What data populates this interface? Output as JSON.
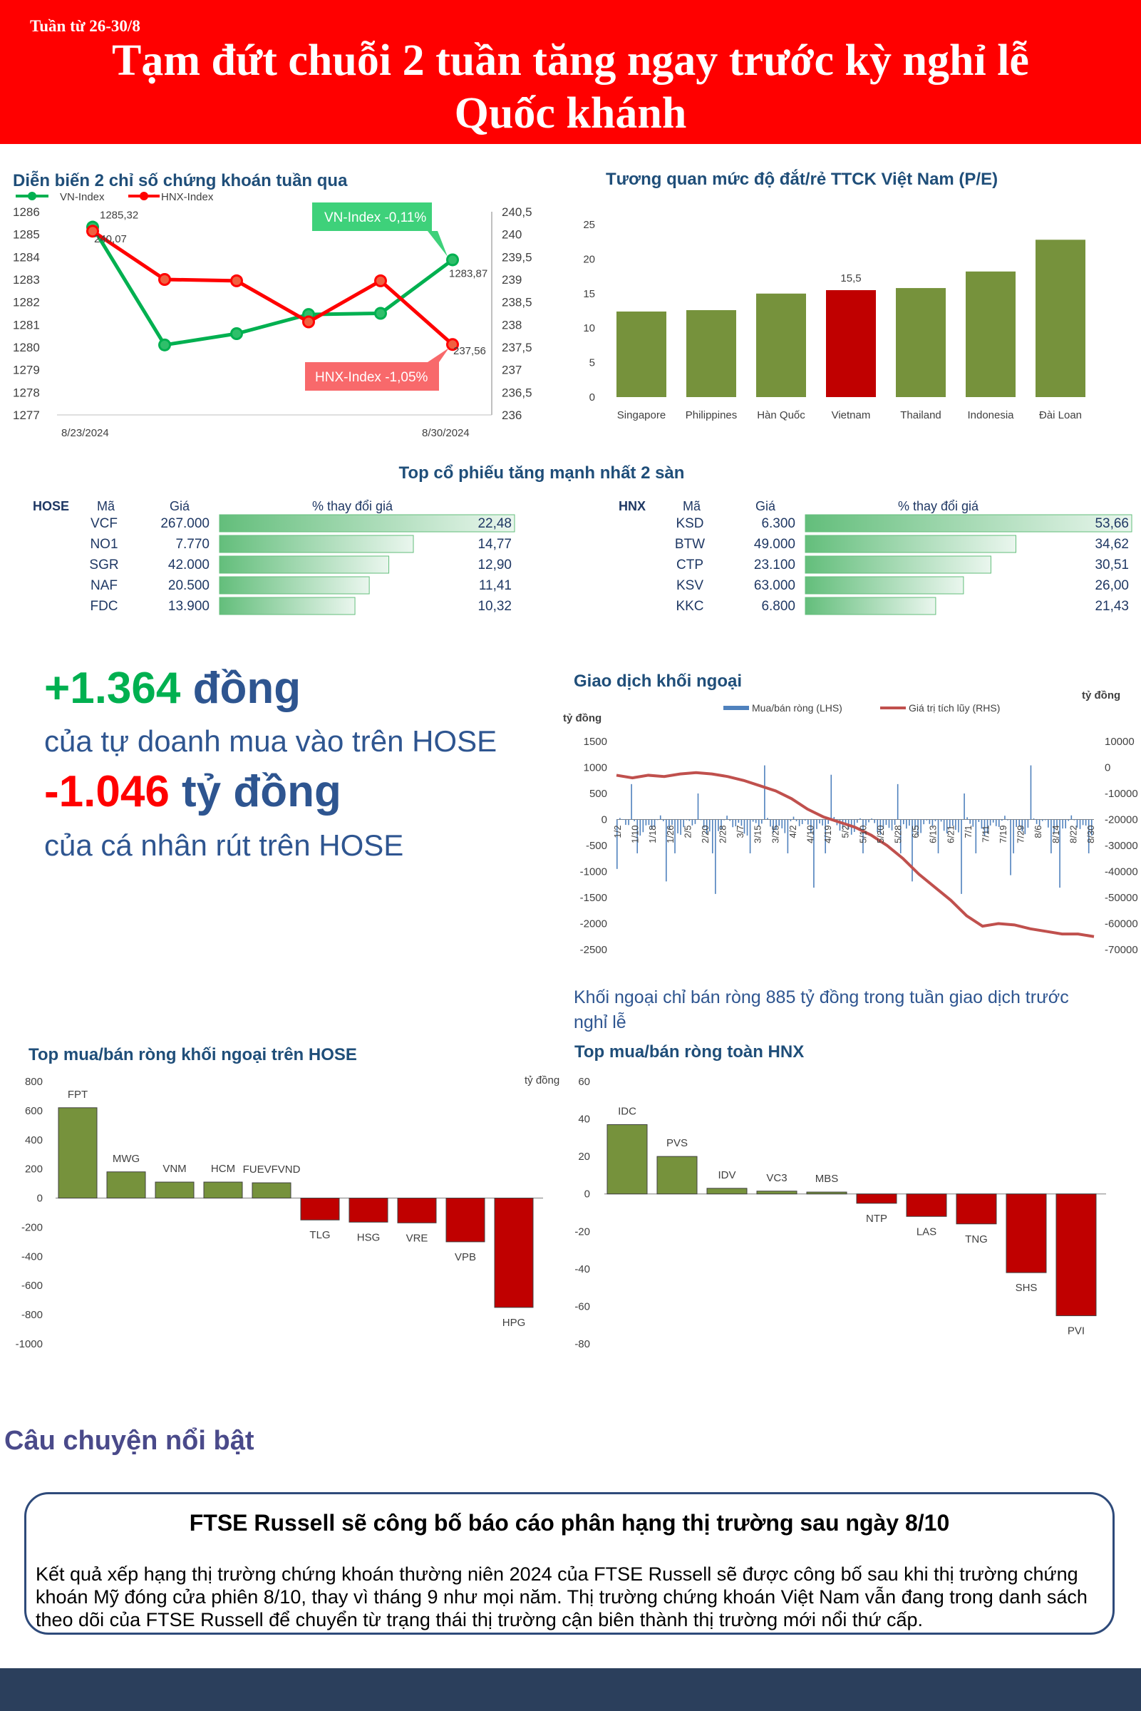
{
  "header": {
    "week": "Tuần từ 26-30/8",
    "title_line1": "Tạm đứt chuỗi 2 tuần tăng ngay trước kỳ nghỉ lễ",
    "title_line2": "Quốc khánh"
  },
  "colors": {
    "red": "#ff0000",
    "green": "#00b050",
    "olive": "#76923c",
    "darkred": "#c00000",
    "blue": "#4f81bd",
    "navy": "#1f3864"
  },
  "chart_data": [
    {
      "type": "line",
      "title": "Diễn biến 2 chỉ số chứng khoán tuần qua",
      "x": [
        "8/23/2024",
        "8/26/2024",
        "8/27/2024",
        "8/28/2024",
        "8/29/2024",
        "8/30/2024"
      ],
      "x_tick_labels": [
        "8/23/2024",
        "8/30/2024"
      ],
      "series": [
        {
          "name": "VN-Index",
          "axis": "left",
          "values": [
            1285.32,
            1280.1,
            1280.6,
            1281.45,
            1281.5,
            1283.87
          ]
        },
        {
          "name": "HNX-Index",
          "axis": "right",
          "values": [
            240.07,
            239.0,
            238.97,
            238.06,
            238.97,
            237.56
          ]
        }
      ],
      "point_labels": {
        "vn_first": "1285,32",
        "vn_last": "1283,87",
        "hnx_first": "240,07",
        "hnx_last": "237,56"
      },
      "left_axis_ticks": [
        "1286",
        "1285",
        "1284",
        "1283",
        "1282",
        "1281",
        "1280",
        "1279",
        "1278",
        "1277"
      ],
      "right_axis_ticks": [
        "240,5",
        "240",
        "239,5",
        "239",
        "238,5",
        "238",
        "237,5",
        "237",
        "236,5",
        "236"
      ],
      "ylim_left": [
        1277,
        1286
      ],
      "ylim_right": [
        236,
        240.5
      ],
      "callouts": {
        "vn": "VN-Index -0,11%",
        "hnx": "HNX-Index -1,05%"
      },
      "legend": "top-left"
    },
    {
      "type": "bar",
      "title": "Tương quan mức độ đắt/rẻ TTCK Việt Nam (P/E)",
      "categories": [
        "Singapore",
        "Philippines",
        "Hàn Quốc",
        "Vietnam",
        "Thailand",
        "Indonesia",
        "Đài Loan"
      ],
      "values": [
        12.4,
        12.6,
        15.0,
        15.5,
        15.8,
        18.2,
        22.8
      ],
      "highlight": "Vietnam",
      "highlight_label": "15,5",
      "y_ticks": [
        "25",
        "20",
        "15",
        "10",
        "5",
        "0"
      ],
      "ylim": [
        0,
        25
      ]
    },
    {
      "type": "table",
      "title": "Top cổ phiếu tăng mạnh nhất 2 sàn",
      "hose": {
        "exchange": "HOSE",
        "col_code": "Mã",
        "col_price": "Giá",
        "col_change": "% thay đổi giá",
        "rows": [
          {
            "code": "VCF",
            "price": "267.000",
            "change_label": "22,48",
            "change": 22.48
          },
          {
            "code": "NO1",
            "price": "7.770",
            "change_label": "14,77",
            "change": 14.77
          },
          {
            "code": "SGR",
            "price": "42.000",
            "change_label": "12,90",
            "change": 12.9
          },
          {
            "code": "NAF",
            "price": "20.500",
            "change_label": "11,41",
            "change": 11.41
          },
          {
            "code": "FDC",
            "price": "13.900",
            "change_label": "10,32",
            "change": 10.32
          }
        ]
      },
      "hnx": {
        "exchange": "HNX",
        "col_code": "Mã",
        "col_price": "Giá",
        "col_change": "% thay đổi giá",
        "rows": [
          {
            "code": "KSD",
            "price": "6.300",
            "change_label": "53,66",
            "change": 53.66
          },
          {
            "code": "BTW",
            "price": "49.000",
            "change_label": "34,62",
            "change": 34.62
          },
          {
            "code": "CTP",
            "price": "23.100",
            "change_label": "30,51",
            "change": 30.51
          },
          {
            "code": "KSV",
            "price": "63.000",
            "change_label": "26,00",
            "change": 26.0
          },
          {
            "code": "KKC",
            "price": "6.800",
            "change_label": "21,43",
            "change": 21.43
          }
        ]
      }
    },
    {
      "type": "bar",
      "title": "Giao dịch khối ngoại",
      "unit_left": "tỷ đồng",
      "unit_right": "tỷ đồng",
      "series": [
        {
          "name": "Mua/bán ròng (LHS)",
          "type": "bar",
          "axis": "left"
        },
        {
          "name": "Giá trị tích lũy (RHS)",
          "type": "line",
          "axis": "right",
          "values": [
            -3000,
            -4000,
            -3000,
            -3500,
            -2500,
            -2000,
            -2500,
            -3500,
            -5000,
            -7000,
            -9000,
            -12000,
            -16000,
            -19000,
            -21000,
            -23000,
            -26000,
            -30000,
            -35000,
            -41000,
            -46000,
            -51000,
            -57000,
            -61000,
            -60000,
            -60500,
            -62000,
            -63000,
            -64000,
            -64000,
            -65000
          ]
        }
      ],
      "x_tick_labels": [
        "1/2",
        "1/10",
        "1/18",
        "1/26",
        "2/5",
        "2/20",
        "2/28",
        "3/7",
        "3/15",
        "3/25",
        "4/2",
        "4/10",
        "4/19",
        "5/2",
        "5/10",
        "5/20",
        "5/28",
        "6/5",
        "6/13",
        "6/21",
        "7/1",
        "7/11",
        "7/19",
        "7/29",
        "8/6",
        "8/14",
        "8/22",
        "8/30"
      ],
      "left_ticks": [
        "1500",
        "1000",
        "500",
        "0",
        "-500",
        "-1000",
        "-1500",
        "-2000",
        "-2500"
      ],
      "right_ticks": [
        "10000",
        "0",
        "-10000",
        "-20000",
        "-30000",
        "-40000",
        "-50000",
        "-60000",
        "-70000"
      ],
      "ylim_left": [
        -2500,
        1500
      ],
      "ylim_right": [
        -70000,
        10000
      ],
      "note": "Khối ngoại chỉ bán ròng 885 tỷ đồng trong tuần giao dịch trước nghỉ lễ"
    },
    {
      "type": "bar",
      "title": "Top mua/bán ròng khối ngoại trên HOSE",
      "unit": "tỷ đồng",
      "categories": [
        "FPT",
        "MWG",
        "VNM",
        "HCM",
        "FUEVFVND",
        "TLG",
        "HSG",
        "VRE",
        "VPB",
        "HPG"
      ],
      "values": [
        620,
        180,
        110,
        110,
        105,
        -150,
        -165,
        -170,
        -300,
        -750
      ],
      "y_ticks": [
        "800",
        "600",
        "400",
        "200",
        "0",
        "-200",
        "-400",
        "-600",
        "-800",
        "-1000"
      ],
      "ylim": [
        -1000,
        800
      ]
    },
    {
      "type": "bar",
      "title": "Top mua/bán ròng toàn HNX",
      "categories": [
        "IDC",
        "PVS",
        "IDV",
        "VC3",
        "MBS",
        "NTP",
        "LAS",
        "TNG",
        "SHS",
        "PVI"
      ],
      "values": [
        37,
        20,
        3,
        1.5,
        1,
        -5,
        -12,
        -16,
        -42,
        -65
      ],
      "y_ticks": [
        "60",
        "40",
        "20",
        "0",
        "-20",
        "-40",
        "-60",
        "-80"
      ],
      "ylim": [
        -80,
        60
      ]
    }
  ],
  "highlights": {
    "prop_value": "+1.364",
    "prop_unit": " đồng",
    "prop_desc": "của tự doanh mua vào trên HOSE",
    "retail_value": "-1.046",
    "retail_unit": " tỷ đồng",
    "retail_desc": "của cá nhân rút trên HOSE"
  },
  "story": {
    "section": "Câu chuyện nổi bật",
    "title": "FTSE Russell sẽ công bố báo cáo phân hạng thị trường sau ngày 8/10",
    "text": "Kết quả xếp hạng thị trường chứng khoán thường niên 2024 của FTSE Russell sẽ được công bố sau khi thị trường chứng khoán Mỹ đóng cửa phiên 8/10, thay vì tháng 9 như mọi năm. Thị trường chứng khoán Việt Nam vẫn đang trong danh sách theo dõi của FTSE Russell để chuyển từ trạng thái thị trường cận biên thành thị trường mới nổi thứ cấp."
  }
}
